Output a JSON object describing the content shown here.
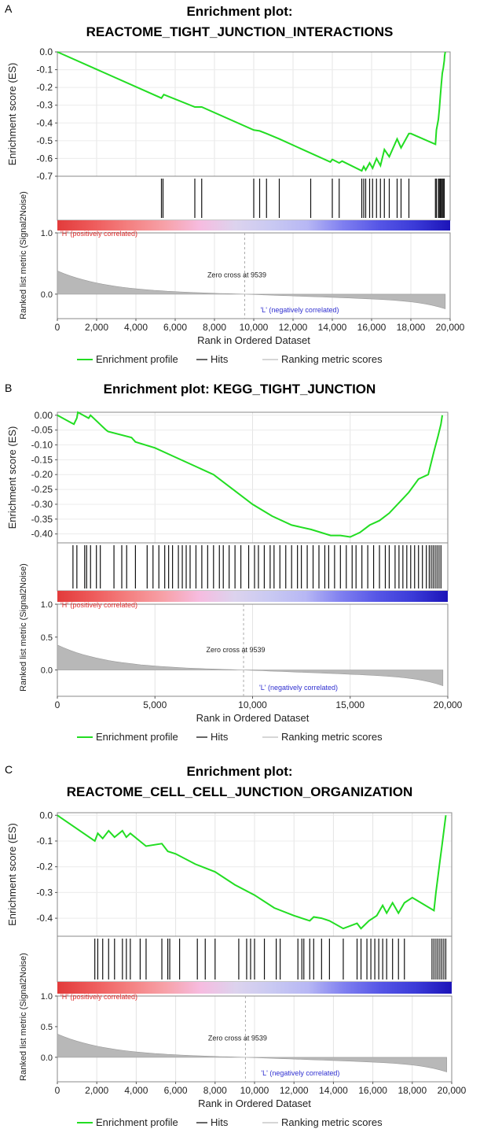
{
  "chart_data": [
    {
      "type": "line",
      "panel_label": "A",
      "title_lines": [
        "Enrichment plot:",
        "REACTOME_TIGHT_JUNCTION_INTERACTIONS"
      ],
      "ylabel": "Enrichment score (ES)",
      "metric_ylabel": "Ranked list metric (Signal2Noise)",
      "xlabel": "Rank in Ordered Dataset",
      "xlim": [
        0,
        20000
      ],
      "xticks": [
        0,
        2000,
        4000,
        6000,
        8000,
        10000,
        12000,
        14000,
        16000,
        18000,
        20000
      ],
      "xtick_labels": [
        "0",
        "2,000",
        "4,000",
        "6,000",
        "8,000",
        "10,000",
        "12,000",
        "14,000",
        "16,000",
        "18,000",
        "20,000"
      ],
      "ylim": [
        -0.7,
        0.0
      ],
      "yticks": [
        0.0,
        -0.1,
        -0.2,
        -0.3,
        -0.4,
        -0.5,
        -0.6,
        -0.7
      ],
      "ytick_labels": [
        "0.0",
        "-0.1",
        "-0.2",
        "-0.3",
        "-0.4",
        "-0.5",
        "-0.6",
        "-0.7"
      ],
      "metric_ylim": [
        -0.4,
        1.0
      ],
      "metric_yticks": [
        1.0,
        0.0
      ],
      "metric_ytick_labels": [
        "1.0",
        "0.0"
      ],
      "pos_label": "'H' (positively correlated)",
      "neg_label": "'L' (negatively correlated)",
      "zero_cross_label": "Zero cross at 9539",
      "zero_cross_rank": 9539,
      "series": [
        {
          "name": "Enrichment profile",
          "color": "#22dd22",
          "x": [
            0,
            5300,
            5420,
            7000,
            7200,
            7350,
            10000,
            10300,
            10650,
            11300,
            13900,
            14000,
            14350,
            14500,
            15500,
            15600,
            15700,
            15900,
            16050,
            16250,
            16450,
            16650,
            16900,
            17300,
            17500,
            17900,
            18000,
            19250,
            19300,
            19400,
            19450,
            19500,
            19550,
            19600,
            19650,
            19700,
            19720,
            19750
          ],
          "y": [
            0.0,
            -0.26,
            -0.24,
            -0.31,
            -0.31,
            -0.31,
            -0.44,
            -0.445,
            -0.46,
            -0.49,
            -0.62,
            -0.605,
            -0.625,
            -0.615,
            -0.67,
            -0.645,
            -0.665,
            -0.625,
            -0.655,
            -0.6,
            -0.64,
            -0.55,
            -0.59,
            -0.49,
            -0.54,
            -0.46,
            -0.46,
            -0.52,
            -0.44,
            -0.38,
            -0.32,
            -0.25,
            -0.18,
            -0.12,
            -0.09,
            -0.05,
            -0.02,
            0.0
          ]
        }
      ],
      "hits": [
        5300,
        5380,
        7000,
        7350,
        10000,
        10300,
        10650,
        11300,
        12900,
        14000,
        14350,
        15500,
        15600,
        15700,
        15900,
        16050,
        16250,
        16450,
        16650,
        16900,
        17300,
        17500,
        17900,
        19250,
        19300,
        19400,
        19450,
        19500,
        19550,
        19600,
        19650,
        19700
      ],
      "legend": [
        "Enrichment profile",
        "Hits",
        "Ranking metric scores"
      ]
    },
    {
      "type": "line",
      "panel_label": "B",
      "title_lines": [
        "Enrichment plot: KEGG_TIGHT_JUNCTION"
      ],
      "ylabel": "Enrichment score (ES)",
      "metric_ylabel": "Ranked list metric (Signal2Noise)",
      "xlabel": "Rank in Ordered Dataset",
      "xlim": [
        0,
        20000
      ],
      "xticks": [
        0,
        5000,
        10000,
        15000,
        20000
      ],
      "xtick_labels": [
        "0",
        "5,000",
        "10,000",
        "15,000",
        "20,000"
      ],
      "ylim": [
        -0.43,
        0.01
      ],
      "yticks": [
        0.0,
        -0.05,
        -0.1,
        -0.15,
        -0.2,
        -0.25,
        -0.3,
        -0.35,
        -0.4
      ],
      "ytick_labels": [
        "0.00",
        "-0.05",
        "-0.10",
        "-0.15",
        "-0.20",
        "-0.25",
        "-0.30",
        "-0.35",
        "-0.40"
      ],
      "metric_ylim": [
        -0.4,
        1.0
      ],
      "metric_yticks": [
        1.0,
        0.5,
        0.0
      ],
      "metric_ytick_labels": [
        "1.0",
        "0.5",
        "0.0"
      ],
      "pos_label": "'H' (positively correlated)",
      "neg_label": "'L' (negatively correlated)",
      "zero_cross_label": "Zero cross at 9539",
      "zero_cross_rank": 9539,
      "series": [
        {
          "name": "Enrichment profile",
          "color": "#22dd22",
          "x": [
            0,
            700,
            850,
            1000,
            1050,
            1600,
            1700,
            2500,
            2600,
            3800,
            4000,
            5000,
            6000,
            7000,
            8000,
            9000,
            10000,
            11000,
            12000,
            13000,
            14000,
            14500,
            15000,
            15500,
            16000,
            16500,
            17000,
            17500,
            18000,
            18500,
            19000,
            19300,
            19500,
            19650,
            19720
          ],
          "y": [
            0.0,
            -0.025,
            -0.03,
            -0.01,
            0.01,
            -0.01,
            0.0,
            -0.05,
            -0.055,
            -0.075,
            -0.09,
            -0.11,
            -0.14,
            -0.17,
            -0.2,
            -0.25,
            -0.3,
            -0.34,
            -0.37,
            -0.385,
            -0.405,
            -0.405,
            -0.41,
            -0.395,
            -0.37,
            -0.355,
            -0.33,
            -0.295,
            -0.26,
            -0.215,
            -0.2,
            -0.12,
            -0.07,
            -0.03,
            0.0
          ]
        }
      ],
      "hits": [
        800,
        1000,
        1400,
        1500,
        1700,
        2000,
        2200,
        2900,
        3300,
        3550,
        4000,
        4600,
        4900,
        5200,
        5500,
        5700,
        5900,
        6200,
        6400,
        6600,
        6800,
        7100,
        7400,
        7700,
        8000,
        8300,
        8500,
        8800,
        9100,
        9400,
        9800,
        10100,
        10300,
        10600,
        10900,
        11100,
        11400,
        11700,
        12000,
        12300,
        12500,
        12800,
        13100,
        13400,
        13700,
        13900,
        14200,
        14500,
        14800,
        15100,
        15300,
        15600,
        15900,
        16200,
        16500,
        16800,
        17000,
        17300,
        17500,
        17700,
        17900,
        18100,
        18300,
        18500,
        18700,
        18900,
        19050,
        19150,
        19250,
        19350,
        19450,
        19550,
        19650
      ],
      "legend": [
        "Enrichment profile",
        "Hits",
        "Ranking metric scores"
      ]
    },
    {
      "type": "line",
      "panel_label": "C",
      "title_lines": [
        "Enrichment plot:",
        "REACTOME_CELL_CELL_JUNCTION_ORGANIZATION"
      ],
      "ylabel": "Enrichment score (ES)",
      "metric_ylabel": "Ranked list metric (Signal2Noise)",
      "xlabel": "Rank in Ordered Dataset",
      "xlim": [
        0,
        20000
      ],
      "xticks": [
        0,
        2000,
        4000,
        6000,
        8000,
        10000,
        12000,
        14000,
        16000,
        18000,
        20000
      ],
      "xtick_labels": [
        "0",
        "2,000",
        "4,000",
        "6,000",
        "8,000",
        "10,000",
        "12,000",
        "14,000",
        "16,000",
        "18,000",
        "20,000"
      ],
      "ylim": [
        -0.47,
        0.01
      ],
      "yticks": [
        0.0,
        -0.1,
        -0.2,
        -0.3,
        -0.4
      ],
      "ytick_labels": [
        "0.0",
        "-0.1",
        "-0.2",
        "-0.3",
        "-0.4"
      ],
      "metric_ylim": [
        -0.4,
        1.0
      ],
      "metric_yticks": [
        1.0,
        0.5,
        0.0
      ],
      "metric_ytick_labels": [
        "1.0",
        "0.5",
        "0.0"
      ],
      "pos_label": "'H' (positively correlated)",
      "neg_label": "'L' (negatively correlated)",
      "zero_cross_label": "Zero cross at 9539",
      "zero_cross_rank": 9539,
      "series": [
        {
          "name": "Enrichment profile",
          "color": "#22dd22",
          "x": [
            0,
            1900,
            2050,
            2300,
            2600,
            2900,
            3300,
            3500,
            3700,
            4500,
            5300,
            5600,
            6000,
            7000,
            8000,
            9000,
            10000,
            11000,
            12000,
            12800,
            13000,
            13400,
            13800,
            14500,
            15200,
            15400,
            15800,
            16200,
            16500,
            16700,
            17000,
            17300,
            17600,
            18000,
            19100,
            19200,
            19300,
            19400,
            19500,
            19600,
            19700
          ],
          "y": [
            0.0,
            -0.1,
            -0.07,
            -0.09,
            -0.06,
            -0.085,
            -0.06,
            -0.085,
            -0.07,
            -0.12,
            -0.11,
            -0.14,
            -0.15,
            -0.19,
            -0.22,
            -0.27,
            -0.31,
            -0.36,
            -0.39,
            -0.41,
            -0.395,
            -0.4,
            -0.41,
            -0.44,
            -0.42,
            -0.44,
            -0.41,
            -0.39,
            -0.35,
            -0.38,
            -0.34,
            -0.38,
            -0.34,
            -0.32,
            -0.37,
            -0.3,
            -0.24,
            -0.18,
            -0.12,
            -0.06,
            0.0
          ]
        }
      ],
      "hits": [
        1900,
        2050,
        2300,
        2600,
        2900,
        3300,
        3500,
        3700,
        4200,
        4500,
        5300,
        5600,
        5700,
        6200,
        7100,
        7500,
        8000,
        9200,
        9600,
        9800,
        10000,
        10500,
        11100,
        11300,
        12200,
        12400,
        12500,
        12800,
        13000,
        13400,
        13800,
        14500,
        15200,
        15400,
        15700,
        15900,
        16100,
        16300,
        16500,
        16700,
        17000,
        17300,
        17600,
        19000,
        19100,
        19200,
        19300,
        19400,
        19500,
        19600,
        19700
      ],
      "legend": [
        "Enrichment profile",
        "Hits",
        "Ranking metric scores"
      ]
    }
  ]
}
